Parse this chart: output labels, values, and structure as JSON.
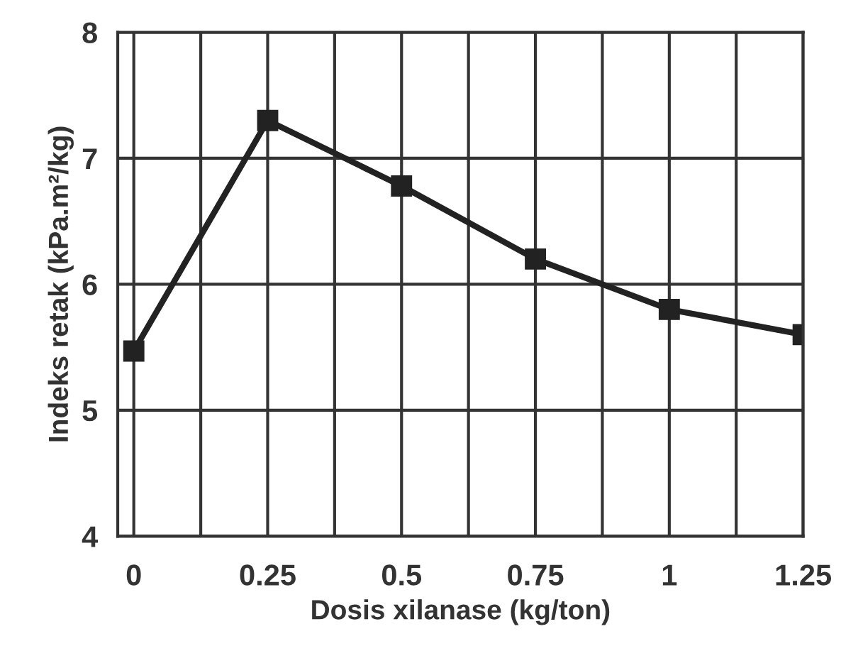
{
  "chart_data": {
    "type": "line",
    "xlabel": "Dosis xilanase (kg/ton)",
    "ylabel": "Indeks retak (kPa.m²/kg)",
    "x": [
      0,
      0.25,
      0.5,
      0.75,
      1,
      1.25
    ],
    "series": [
      {
        "color": "#222222",
        "values": [
          5.47,
          7.3,
          6.78,
          6.2,
          5.8,
          5.6
        ]
      }
    ],
    "xlim": [
      -0.03,
      1.25
    ],
    "ylim": [
      4,
      8
    ],
    "xticks": [
      0,
      {
        "value": 0.125,
        "label": null
      },
      0.25,
      {
        "value": 0.375,
        "label": null
      },
      0.5,
      {
        "value": 0.625,
        "label": null
      },
      0.75,
      {
        "value": 0.875,
        "label": null
      },
      1,
      {
        "value": 1.125,
        "label": null
      },
      1.25
    ],
    "yticks": [
      4,
      5,
      6,
      7,
      8
    ],
    "grid": true,
    "marker": "square",
    "line_style": "solid",
    "legend": false
  }
}
